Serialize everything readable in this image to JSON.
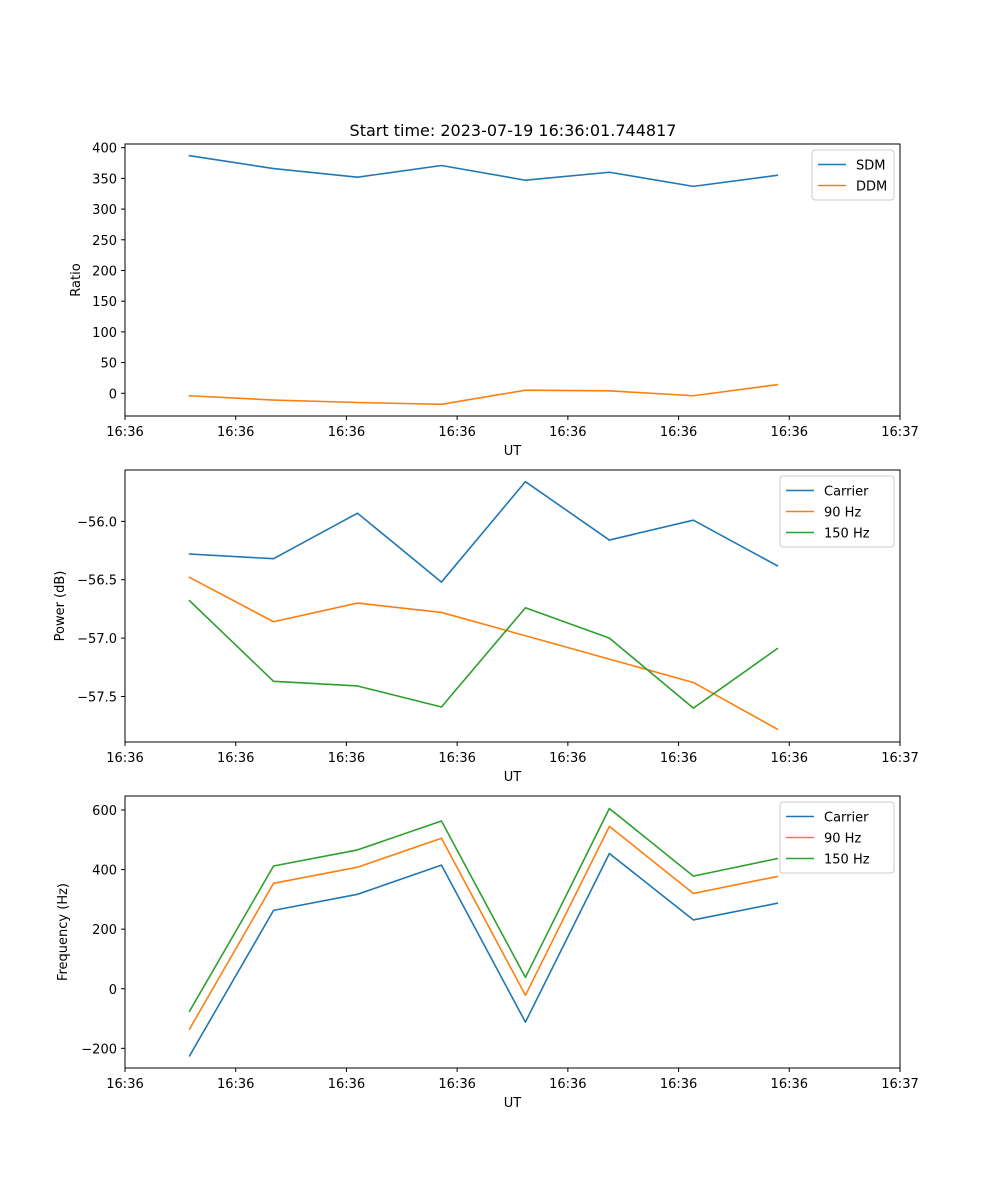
{
  "figure": {
    "title": "Start time: 2023-07-19 16:36:01.744817"
  },
  "colors": {
    "blue": "#1f77b4",
    "orange": "#ff7f0e",
    "green": "#2ca02c"
  },
  "chart_data": [
    {
      "type": "line",
      "title": "Start time: 2023-07-19 16:36:01.744817",
      "xlabel": "UT",
      "ylabel": "Ratio",
      "x_tick_labels": [
        "16:36",
        "16:36",
        "16:36",
        "16:36",
        "16:36",
        "16:36",
        "16:36",
        "16:37"
      ],
      "xlim": [
        0,
        6
      ],
      "x": [
        0.5,
        1.15,
        1.8,
        2.45,
        3.1,
        3.75,
        4.4,
        5.05
      ],
      "ylim": [
        -37,
        406
      ],
      "y_ticks": [
        0,
        50,
        100,
        150,
        200,
        250,
        300,
        350,
        400
      ],
      "y_tick_labels": [
        "0",
        "50",
        "100",
        "150",
        "200",
        "250",
        "300",
        "350",
        "400"
      ],
      "legend_loc": "upper right",
      "grid": false,
      "series": [
        {
          "name": "SDM",
          "color": "#1f77b4",
          "values": [
            387,
            366,
            352,
            371,
            347,
            360,
            337,
            355
          ]
        },
        {
          "name": "DDM",
          "color": "#ff7f0e",
          "values": [
            -4,
            -11,
            -15,
            -18,
            5,
            4,
            -4,
            14
          ]
        }
      ]
    },
    {
      "type": "line",
      "title": "",
      "xlabel": "UT",
      "ylabel": "Power (dB)",
      "x_tick_labels": [
        "16:36",
        "16:36",
        "16:36",
        "16:36",
        "16:36",
        "16:36",
        "16:36",
        "16:37"
      ],
      "xlim": [
        0,
        6
      ],
      "x": [
        0.5,
        1.15,
        1.8,
        2.45,
        3.1,
        3.75,
        4.4,
        5.05
      ],
      "ylim": [
        -57.89,
        -55.56
      ],
      "y_ticks": [
        -57.5,
        -57.0,
        -56.5,
        -56.0
      ],
      "y_tick_labels": [
        "−57.5",
        "−57.0",
        "−56.5",
        "−56.0"
      ],
      "legend_loc": "upper right",
      "grid": false,
      "series": [
        {
          "name": "Carrier",
          "color": "#1f77b4",
          "values": [
            -56.28,
            -56.32,
            -55.93,
            -56.52,
            -55.66,
            -56.16,
            -55.99,
            -56.38
          ]
        },
        {
          "name": "90 Hz",
          "color": "#ff7f0e",
          "values": [
            -56.48,
            -56.86,
            -56.7,
            -56.78,
            -56.98,
            -57.18,
            -57.38,
            -57.78
          ]
        },
        {
          "name": "150 Hz",
          "color": "#2ca02c",
          "values": [
            -56.68,
            -57.37,
            -57.41,
            -57.59,
            -56.74,
            -57.0,
            -57.6,
            -57.09
          ]
        }
      ]
    },
    {
      "type": "line",
      "title": "",
      "xlabel": "UT",
      "ylabel": "Frequency (Hz)",
      "x_tick_labels": [
        "16:36",
        "16:36",
        "16:36",
        "16:36",
        "16:36",
        "16:36",
        "16:36",
        "16:37"
      ],
      "xlim": [
        0,
        6
      ],
      "x": [
        0.5,
        1.15,
        1.8,
        2.45,
        3.1,
        3.75,
        4.4,
        5.05
      ],
      "ylim": [
        -266,
        647
      ],
      "y_ticks": [
        -200,
        0,
        200,
        400,
        600
      ],
      "y_tick_labels": [
        "−200",
        "0",
        "200",
        "400",
        "600"
      ],
      "legend_loc": "upper right",
      "grid": false,
      "series": [
        {
          "name": "Carrier",
          "color": "#1f77b4",
          "values": [
            -225,
            263,
            317,
            415,
            -112,
            454,
            231,
            287
          ]
        },
        {
          "name": "90 Hz",
          "color": "#ff7f0e",
          "values": [
            -135,
            354,
            408,
            505,
            -22,
            545,
            320,
            377
          ]
        },
        {
          "name": "150 Hz",
          "color": "#2ca02c",
          "values": [
            -75,
            412,
            466,
            563,
            38,
            605,
            378,
            437
          ]
        }
      ]
    }
  ]
}
